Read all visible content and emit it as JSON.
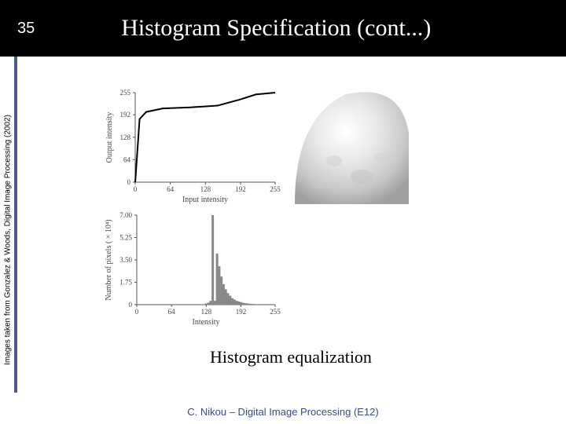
{
  "header": {
    "page_number": "35",
    "title": "Histogram Specification (cont...)",
    "bg_color": "#000000",
    "text_color": "#ffffff",
    "title_fontsize": 30
  },
  "sidebar": {
    "citation": "Images taken from Gonzalez & Woods, Digital Image Processing (2002)",
    "accent_color": "#4a5a8a"
  },
  "transfer_chart": {
    "type": "line",
    "xlabel": "Input intensity",
    "ylabel": "Output intensity",
    "xlim": [
      0,
      255
    ],
    "ylim": [
      0,
      255
    ],
    "xticks": [
      0,
      64,
      128,
      192,
      255
    ],
    "yticks": [
      0,
      64,
      128,
      192,
      255
    ],
    "label_fontsize": 10,
    "tick_fontsize": 9,
    "line_color": "#000000",
    "line_width": 2,
    "background_color": "#ffffff",
    "axis_color": "#555555",
    "points": [
      [
        0,
        0
      ],
      [
        8,
        180
      ],
      [
        20,
        200
      ],
      [
        50,
        210
      ],
      [
        100,
        213
      ],
      [
        150,
        218
      ],
      [
        190,
        235
      ],
      [
        220,
        250
      ],
      [
        255,
        255
      ]
    ]
  },
  "histogram_chart": {
    "type": "histogram",
    "xlabel": "Intensity",
    "ylabel": "Number of pixels ( × 10⁴)",
    "xlim": [
      0,
      255
    ],
    "ylim": [
      0,
      7.0
    ],
    "xticks": [
      0,
      64,
      128,
      192,
      255
    ],
    "yticks": [
      0,
      1.75,
      3.5,
      5.25,
      7.0
    ],
    "ytick_labels": [
      "0",
      "1.75",
      "3.50",
      "5.25",
      "7.00"
    ],
    "label_fontsize": 10,
    "tick_fontsize": 9,
    "bar_color": "#888888",
    "background_color": "#ffffff",
    "axis_color": "#555555",
    "bars": [
      {
        "x": 128,
        "h": 0.1
      },
      {
        "x": 132,
        "h": 0.15
      },
      {
        "x": 136,
        "h": 0.3
      },
      {
        "x": 140,
        "h": 7.0
      },
      {
        "x": 144,
        "h": 0.3
      },
      {
        "x": 148,
        "h": 4.0
      },
      {
        "x": 152,
        "h": 3.0
      },
      {
        "x": 156,
        "h": 2.2
      },
      {
        "x": 160,
        "h": 1.6
      },
      {
        "x": 164,
        "h": 1.2
      },
      {
        "x": 168,
        "h": 0.9
      },
      {
        "x": 172,
        "h": 0.7
      },
      {
        "x": 176,
        "h": 0.5
      },
      {
        "x": 180,
        "h": 0.4
      },
      {
        "x": 184,
        "h": 0.3
      },
      {
        "x": 188,
        "h": 0.25
      },
      {
        "x": 192,
        "h": 0.2
      },
      {
        "x": 196,
        "h": 0.15
      },
      {
        "x": 200,
        "h": 0.12
      },
      {
        "x": 204,
        "h": 0.1
      },
      {
        "x": 208,
        "h": 0.08
      },
      {
        "x": 212,
        "h": 0.06
      },
      {
        "x": 216,
        "h": 0.05
      },
      {
        "x": 220,
        "h": 0.04
      }
    ]
  },
  "moon_image": {
    "description": "grayscale-moon-surface",
    "tone": "light-washed-out",
    "background": "#f2f2f2"
  },
  "caption": "Histogram equalization",
  "footer": "C. Nikou – Digital Image Processing (E12)",
  "footer_color": "#3a4a8a"
}
